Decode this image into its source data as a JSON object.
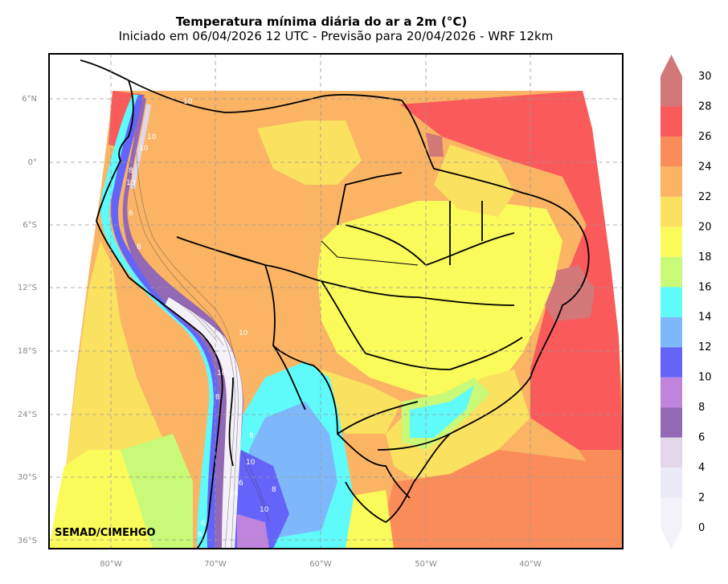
{
  "title": "Temperatura mínima diária do ar a 2m (°C)",
  "subtitle": "Iniciado em 06/04/2026 12 UTC - Previsão para 20/04/2026 - WRF 12km",
  "credit": "SEMAD/CIMEHGO",
  "map": {
    "lat_labels": [
      "6°N",
      "0°",
      "6°S",
      "12°S",
      "18°S",
      "24°S",
      "30°S",
      "36°S"
    ],
    "lon_labels": [
      "80°W",
      "70°W",
      "60°W",
      "50°W",
      "40°W"
    ],
    "contour_labels": [
      "10",
      "10",
      "10",
      "8",
      "10",
      "6",
      "8",
      "10",
      "10",
      "8",
      "8",
      "10",
      "6",
      "10",
      "8",
      "10",
      "6",
      "8"
    ]
  },
  "colorbar": {
    "ticks": [
      "0",
      "2",
      "4",
      "6",
      "8",
      "10",
      "12",
      "14",
      "16",
      "18",
      "20",
      "22",
      "24",
      "26",
      "28",
      "30"
    ],
    "colors": [
      "#f4f2f8",
      "#ebebf7",
      "#e2d6e8",
      "#9368b4",
      "#c084dc",
      "#6464fa",
      "#7fb8fa",
      "#5ffafa",
      "#c8fa78",
      "#fafa5a",
      "#fae15f",
      "#fab464",
      "#fa8c5a",
      "#fa5a5a",
      "#d27878"
    ]
  }
}
